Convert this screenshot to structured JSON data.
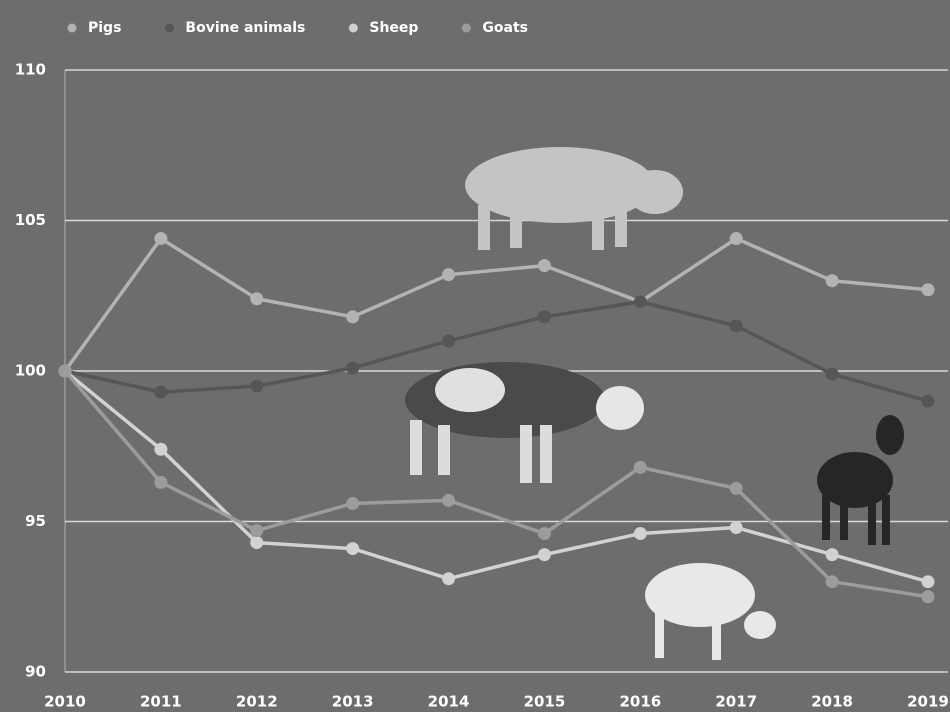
{
  "chart_data": {
    "type": "line",
    "x": [
      2010,
      2011,
      2012,
      2013,
      2014,
      2015,
      2016,
      2017,
      2018,
      2019
    ],
    "xlim": [
      2010,
      2019
    ],
    "xticks": [
      2010,
      2011,
      2012,
      2013,
      2014,
      2015,
      2016,
      2017,
      2018,
      2019
    ],
    "ylim": [
      90,
      110
    ],
    "yticks": [
      90,
      95,
      100,
      105,
      110
    ],
    "grid": true,
    "legend": "top",
    "series": [
      {
        "name": "Pigs",
        "color": "#b3b3b3",
        "values": [
          100,
          104.4,
          102.4,
          101.8,
          103.2,
          103.5,
          102.3,
          104.4,
          103.0,
          102.7
        ]
      },
      {
        "name": "Bovine animals",
        "color": "#565656",
        "values": [
          100,
          99.3,
          99.5,
          100.1,
          101.0,
          101.8,
          102.3,
          101.5,
          99.9,
          99.0
        ]
      },
      {
        "name": "Sheep",
        "color": "#d2d2d2",
        "values": [
          100,
          97.4,
          94.3,
          94.1,
          93.1,
          93.9,
          94.6,
          94.8,
          93.9,
          93.0
        ]
      },
      {
        "name": "Goats",
        "color": "#9c9c9c",
        "values": [
          100,
          96.3,
          94.7,
          95.6,
          95.7,
          94.6,
          96.8,
          96.1,
          93.0,
          92.5
        ]
      }
    ]
  }
}
